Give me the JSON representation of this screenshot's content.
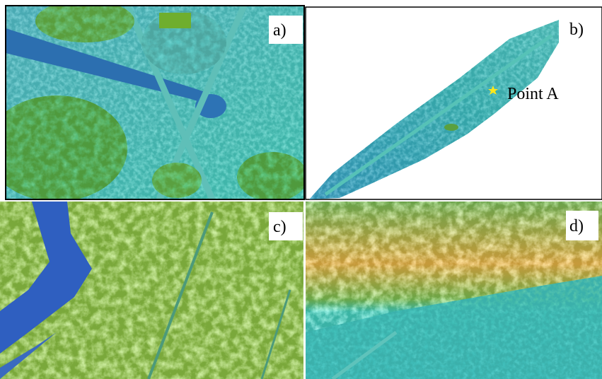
{
  "panels": [
    {
      "label": "a)"
    },
    {
      "label": "b)",
      "annotation": "Point A"
    },
    {
      "label": "c)"
    },
    {
      "label": "d)"
    }
  ]
}
